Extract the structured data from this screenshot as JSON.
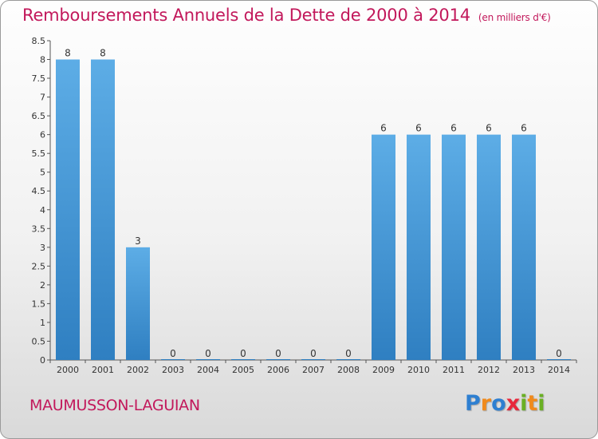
{
  "title": "Remboursements Annuels de la Dette de 2000 à 2014",
  "unit": "(en milliers d'€)",
  "commune": "MAUMUSSON-LAGUIAN",
  "logo": {
    "letters": [
      "P",
      "r",
      "o",
      "x",
      "i",
      "t",
      "i"
    ],
    "colors": [
      "#2e7fd1",
      "#f08a1c",
      "#2e7fd1",
      "#e8283c",
      "#6ab023",
      "#f08a1c",
      "#6ab023"
    ]
  },
  "chart_data": {
    "type": "bar",
    "categories": [
      "2000",
      "2001",
      "2002",
      "2003",
      "2004",
      "2005",
      "2006",
      "2007",
      "2008",
      "2009",
      "2010",
      "2011",
      "2012",
      "2013",
      "2014"
    ],
    "values": [
      8,
      8,
      3,
      0,
      0,
      0,
      0,
      0,
      0,
      6,
      6,
      6,
      6,
      6,
      0
    ],
    "data_labels": [
      "8",
      "8",
      "3",
      "0",
      "0",
      "0",
      "0",
      "0",
      "0",
      "6",
      "6",
      "6",
      "6",
      "6",
      "0"
    ],
    "ylim": [
      0,
      8.5
    ],
    "yticks": [
      "0",
      "0.5",
      "1",
      "1.5",
      "2",
      "2.5",
      "3",
      "3.5",
      "4",
      "4.5",
      "5",
      "5.5",
      "6",
      "6.5",
      "7",
      "7.5",
      "8",
      "8.5"
    ],
    "grid": false,
    "colors": {
      "bar_light": "#5dade6",
      "bar_dark": "#2f7fc1",
      "axis": "#555555"
    }
  }
}
